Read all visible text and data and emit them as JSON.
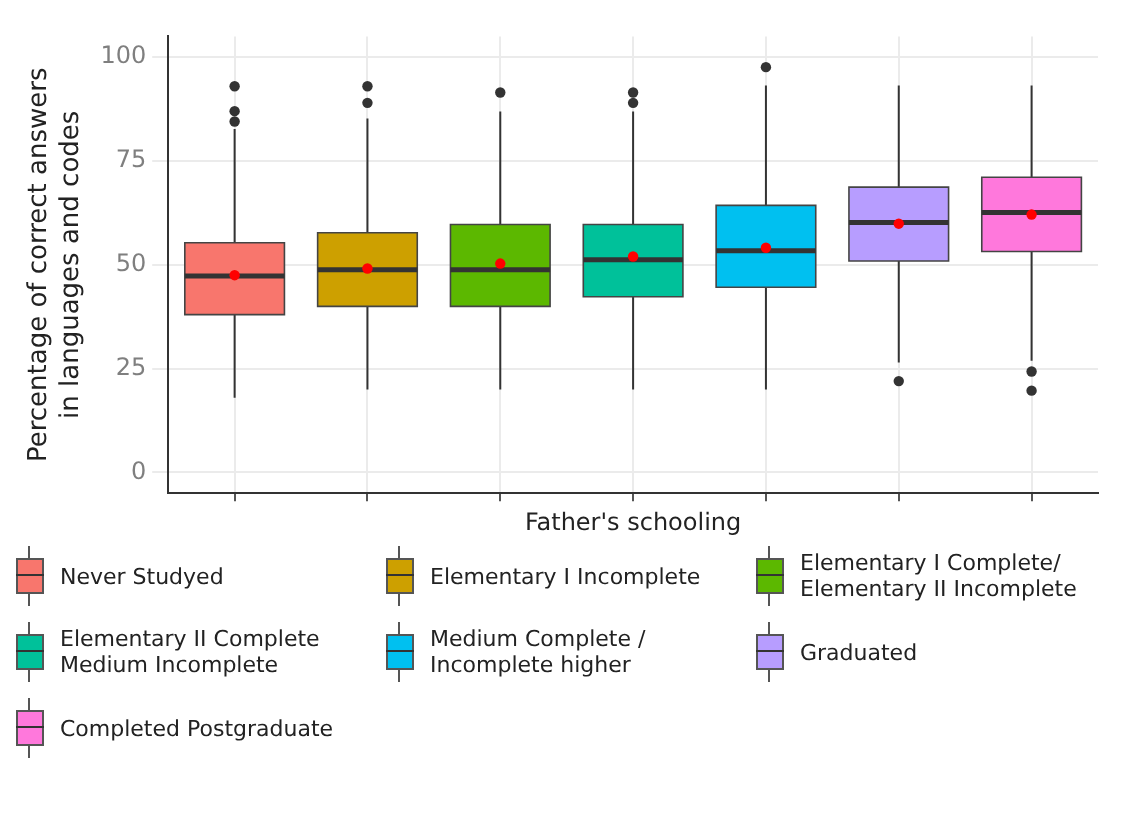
{
  "chart_data": {
    "type": "box",
    "xlabel": "Father's schooling",
    "ylabel": "Percentage of correct answers\nin languages and codes",
    "categories": [
      null,
      null,
      null,
      null,
      null,
      null,
      null
    ],
    "ylim": [
      -5,
      105
    ],
    "yticks": [
      0,
      25,
      50,
      75,
      100
    ],
    "grid": true,
    "legend": "bottom",
    "tick_labels": "y",
    "series": [
      {
        "name": "Never Studyed",
        "color": "#f8766d",
        "boxes": [
          {
            "low": 18,
            "q1": 38,
            "median": 47.3,
            "q3": 55.3,
            "high": 82.7,
            "mean": 47.5,
            "outliers": [
              93,
              87,
              84.5
            ]
          },
          null,
          null,
          null,
          null,
          null,
          null
        ]
      },
      {
        "name": "Elementary I Incomplete",
        "color": "#cda000",
        "boxes": [
          null,
          {
            "low": 20,
            "q1": 40,
            "median": 48.8,
            "q3": 57.7,
            "high": 85.2,
            "mean": 49.1,
            "outliers": [
              93,
              89
            ]
          },
          null,
          null,
          null,
          null,
          null
        ]
      },
      {
        "name": "Elementary I Complete/ Elementary II Incomplete",
        "color": "#5cb800",
        "boxes": [
          null,
          null,
          {
            "low": 20,
            "q1": 40,
            "median": 48.8,
            "q3": 59.7,
            "high": 86.9,
            "mean": 50.3,
            "outliers": [
              91.5
            ]
          },
          null,
          null,
          null,
          null
        ]
      },
      {
        "name": "Elementary II Complete Medium Incomplete",
        "color": "#00c19a",
        "boxes": [
          null,
          null,
          null,
          {
            "low": 20,
            "q1": 42.3,
            "median": 51.2,
            "q3": 59.7,
            "high": 86.9,
            "mean": 52,
            "outliers": [
              91.5,
              89
            ]
          },
          null,
          null,
          null
        ]
      },
      {
        "name": "Medium Complete / Incomplete higher",
        "color": "#00c0f0",
        "boxes": [
          null,
          null,
          null,
          null,
          {
            "low": 20,
            "q1": 44.6,
            "median": 53.4,
            "q3": 64.3,
            "high": 93.2,
            "mean": 54.1,
            "outliers": [
              97.6
            ]
          },
          null,
          null
        ]
      },
      {
        "name": "Graduated",
        "color": "#b79dff",
        "boxes": [
          null,
          null,
          null,
          null,
          null,
          {
            "low": 26.5,
            "q1": 50.9,
            "median": 60.2,
            "q3": 68.7,
            "high": 93.2,
            "mean": 59.9,
            "outliers": [
              22
            ]
          },
          null
        ]
      },
      {
        "name": "Completed Postgraduate",
        "color": "#ff78dc",
        "boxes": [
          null,
          null,
          null,
          null,
          null,
          null,
          {
            "low": 26.9,
            "q1": 53.2,
            "median": 62.6,
            "q3": 71.1,
            "high": 93.2,
            "mean": 62.1,
            "outliers": [
              24.3,
              19.7
            ]
          }
        ]
      }
    ]
  }
}
